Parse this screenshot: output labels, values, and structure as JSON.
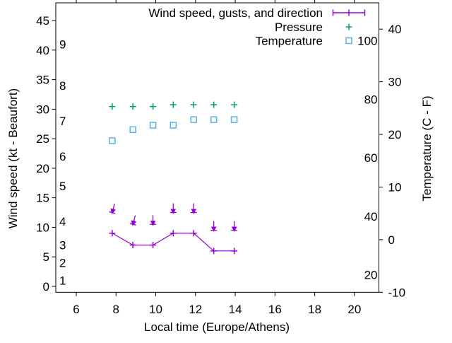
{
  "chart_data": {
    "type": "line",
    "title": "",
    "xlabel": "Local time (Europe/Athens)",
    "ylabel_left": "Wind speed (kt - Beaufort)",
    "ylabel_right": "Temperature (C - F)",
    "grid": false,
    "legend_position": "top-right-inside",
    "x_domain": [
      4.97,
      21.23
    ],
    "x_ticks": [
      6,
      8,
      10,
      12,
      14,
      16,
      18,
      20
    ],
    "y_left_domain_kt": [
      -1,
      48
    ],
    "y_left_ticks_kt": [
      0,
      5,
      10,
      15,
      20,
      25,
      30,
      35,
      40,
      45
    ],
    "beaufort_inner_labels": {
      "labels": [
        "1",
        "2",
        "3",
        "4",
        "5",
        "6",
        "7",
        "8",
        "9"
      ],
      "kt_positions": [
        1,
        4,
        7,
        11,
        17,
        22,
        28,
        34,
        41
      ]
    },
    "y_right_domain_c": [
      -10,
      45
    ],
    "y_right_ticks_c": [
      -10,
      0,
      10,
      20,
      30,
      40
    ],
    "fahrenheit_inner_labels": {
      "labels": [
        "20",
        "40",
        "60",
        "80",
        "100"
      ],
      "c_positions": [
        -6.67,
        4.44,
        15.56,
        26.67,
        37.78
      ]
    },
    "x": [
      7.81,
      8.85,
      9.86,
      10.88,
      11.91,
      12.92,
      13.95
    ],
    "series": [
      {
        "name": "Wind speed, gusts, and direction",
        "type": "line+points+gust-arrows",
        "axis": "left_kt",
        "color": "#9400d3",
        "wind_kt": [
          9,
          7,
          7,
          9,
          9,
          6,
          6
        ],
        "gust_kt": [
          12.5,
          10.5,
          10.5,
          12.5,
          12.5,
          9.5,
          9.5
        ],
        "arrow_tilt_deg": [
          15,
          15,
          0,
          0,
          0,
          0,
          0
        ]
      },
      {
        "name": "Pressure",
        "type": "points",
        "marker": "plus",
        "axis": "left_kt",
        "color": "#009e73",
        "values_kt_scale": [
          30.45,
          30.45,
          30.45,
          30.75,
          30.75,
          30.75,
          30.75
        ]
      },
      {
        "name": "Temperature",
        "type": "points",
        "marker": "open-square",
        "axis": "right_c",
        "color": "#56b4e9",
        "values_c": [
          18.8,
          20.9,
          21.75,
          21.75,
          22.8,
          22.8,
          22.8
        ]
      }
    ]
  }
}
